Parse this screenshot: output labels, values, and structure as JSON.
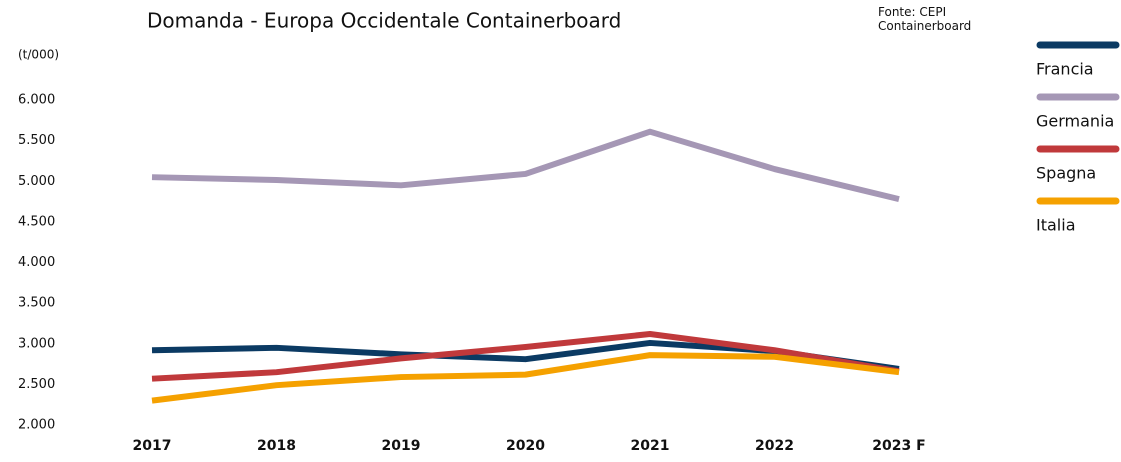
{
  "chart_data": {
    "type": "line",
    "title": "Domanda - Europa Occidentale Containerboard",
    "source": "Fonte: CEPI Containerboard",
    "y_label": "(t/000)",
    "categories": [
      "2017",
      "2018",
      "2019",
      "2020",
      "2021",
      "2022",
      "2023 F"
    ],
    "series": [
      {
        "name": "Francia",
        "color": "#0b3a63",
        "values": [
          2920,
          2950,
          2870,
          2810,
          3010,
          2910,
          2690
        ]
      },
      {
        "name": "Germania",
        "color": "#a597b5",
        "values": [
          5050,
          5015,
          4950,
          5090,
          5610,
          5150,
          4780
        ]
      },
      {
        "name": "Spagna",
        "color": "#c0393b",
        "values": [
          2570,
          2650,
          2820,
          2960,
          3120,
          2920,
          2660
        ]
      },
      {
        "name": "Italia",
        "color": "#f5a100",
        "values": [
          2300,
          2490,
          2590,
          2620,
          2860,
          2840,
          2650
        ]
      }
    ],
    "ylim": [
      2000,
      6000
    ],
    "yticks": [
      {
        "value": 2000,
        "label": "2.000"
      },
      {
        "value": 2500,
        "label": "2.500"
      },
      {
        "value": 3000,
        "label": "3.000"
      },
      {
        "value": 3500,
        "label": "3.500"
      },
      {
        "value": 4000,
        "label": "4.000"
      },
      {
        "value": 4500,
        "label": "4.500"
      },
      {
        "value": 5000,
        "label": "5.000"
      },
      {
        "value": 5500,
        "label": "5.500"
      },
      {
        "value": 6000,
        "label": "6.000"
      }
    ],
    "grid": false,
    "legend": "right"
  }
}
